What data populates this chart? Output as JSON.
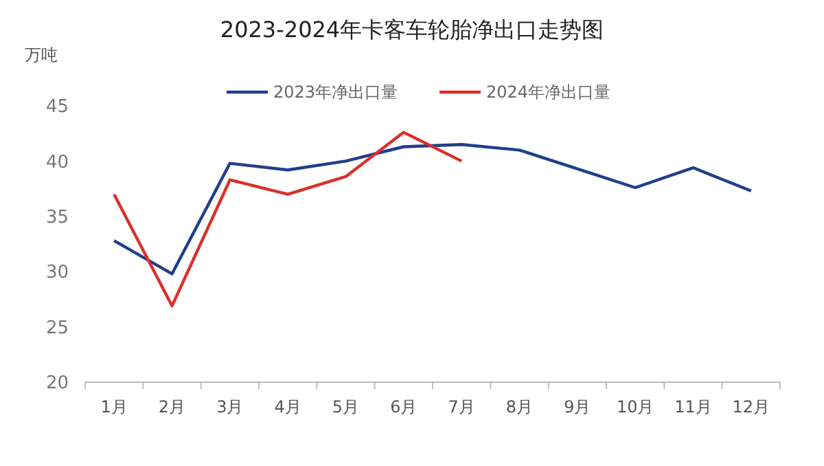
{
  "chart_data": {
    "type": "line",
    "title": "2023-2024年卡客车轮胎净出口走势图",
    "ylabel": "万吨",
    "categories": [
      "1月",
      "2月",
      "3月",
      "4月",
      "5月",
      "6月",
      "7月",
      "8月",
      "9月",
      "10月",
      "11月",
      "12月"
    ],
    "series": [
      {
        "name": "2023年净出口量",
        "color": "#1f3f8c",
        "values": [
          32.8,
          29.8,
          39.8,
          39.2,
          40.0,
          41.3,
          41.5,
          41.0,
          39.3,
          37.6,
          39.4,
          37.3
        ]
      },
      {
        "name": "2024年净出口量",
        "color": "#d9302a",
        "values": [
          37.0,
          26.9,
          38.3,
          37.0,
          38.6,
          42.6,
          40.0,
          null,
          null,
          null,
          null,
          null
        ]
      }
    ],
    "ylim": [
      20,
      45
    ],
    "yticks": [
      20,
      25,
      30,
      35,
      40,
      45
    ],
    "grid": false,
    "legend": "top",
    "marker": "none",
    "line_style": "solid"
  }
}
